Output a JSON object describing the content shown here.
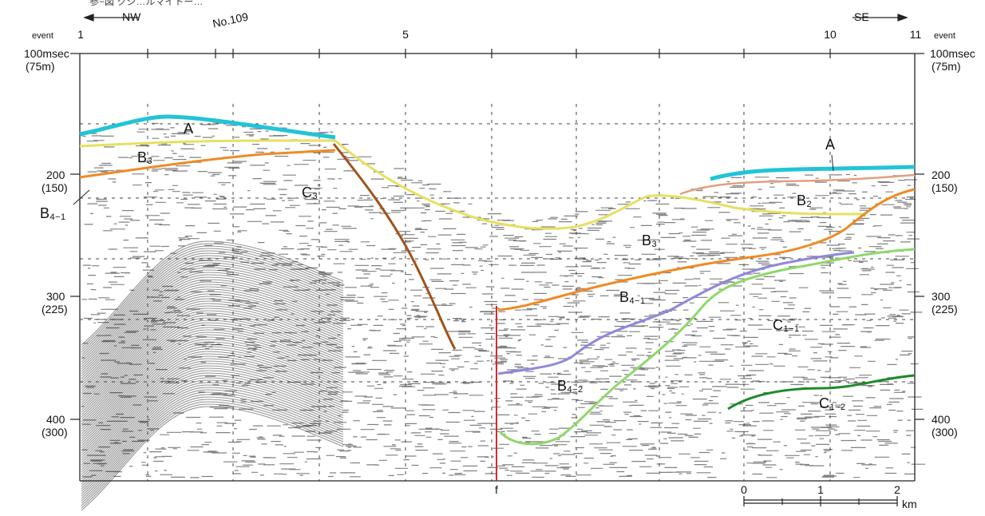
{
  "header": {
    "caption_fragment": "参−図 クシ…ルマイトー…",
    "dir_left": "NW",
    "dir_right": "SE",
    "crossline": "No.109"
  },
  "axes": {
    "event_label": "event",
    "events": [
      "1",
      "5",
      "10",
      "11"
    ],
    "y_ticks": [
      {
        "time": "100msec",
        "depth": "(75m)"
      },
      {
        "time": "200",
        "depth": "(150)"
      },
      {
        "time": "300",
        "depth": "(225)"
      },
      {
        "time": "400",
        "depth": "(300)"
      }
    ]
  },
  "fault": {
    "label": "f",
    "color": "#d42a2a"
  },
  "horizons": {
    "A": {
      "color": "#22c4d6"
    },
    "A_shallow": {
      "color": "#e0a080"
    },
    "B2": {
      "color": "#e6e060"
    },
    "B3": {
      "color": "#e6e060"
    },
    "B4_1": {
      "color": "#f08a24"
    },
    "B4_2": {
      "color": "#8e88dd"
    },
    "C_base": {
      "color": "#8fd86a"
    },
    "C1_2": {
      "color": "#1f8a2c"
    },
    "C3_slope": {
      "color": "#a0521a"
    }
  },
  "labels": {
    "A_left": "A",
    "A_right": "A",
    "B3_left": "B",
    "B3_left_sub": "3",
    "B3_mid": "B",
    "B3_mid_sub": "3",
    "B2": "B",
    "B2_sub": "2",
    "B4_1_left": "B",
    "B4_1_left_sub": "4−1",
    "B4_1_mid": "B",
    "B4_1_mid_sub": "4−1",
    "B4_2": "B",
    "B4_2_sub": "4−2",
    "C3": "C",
    "C3_sub": "3",
    "C1_1": "C",
    "C1_1_sub": "1−1",
    "C1_2": "C",
    "C1_2_sub": "1−2"
  },
  "scale_bar": {
    "ticks": [
      "0",
      "1",
      "2"
    ],
    "unit": "km"
  }
}
